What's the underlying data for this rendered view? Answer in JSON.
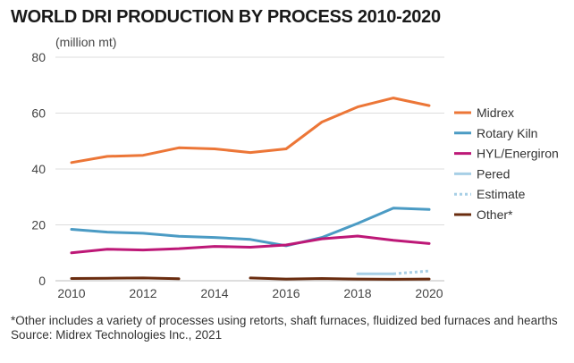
{
  "chart_data": {
    "type": "line",
    "title": "WORLD DRI PRODUCTION BY PROCESS 2010-2020",
    "unit_label": "(million mt)",
    "x_ticks": [
      "2010",
      "2012",
      "2014",
      "2016",
      "2018",
      "2020"
    ],
    "y_ticks": [
      "0",
      "20",
      "40",
      "60",
      "80"
    ],
    "xlim": [
      2010,
      2020
    ],
    "ylim": [
      0,
      80
    ],
    "grid": true,
    "legend_position": "right",
    "series": [
      {
        "name": "Midrex",
        "color": "#ec7637",
        "points": [
          [
            2010,
            42.3
          ],
          [
            2011,
            44.5
          ],
          [
            2012,
            44.9
          ],
          [
            2013,
            47.6
          ],
          [
            2014,
            47.2
          ],
          [
            2015,
            45.9
          ],
          [
            2016,
            47.2
          ],
          [
            2017,
            56.8
          ],
          [
            2018,
            62.2
          ],
          [
            2019,
            65.4
          ],
          [
            2020,
            62.7
          ]
        ]
      },
      {
        "name": "Rotary Kiln",
        "color": "#4b9bc4",
        "points": [
          [
            2010,
            18.4
          ],
          [
            2011,
            17.4
          ],
          [
            2012,
            17.0
          ],
          [
            2013,
            15.9
          ],
          [
            2014,
            15.5
          ],
          [
            2015,
            14.8
          ],
          [
            2016,
            12.5
          ],
          [
            2017,
            15.5
          ],
          [
            2018,
            20.5
          ],
          [
            2019,
            26.0
          ],
          [
            2020,
            25.5
          ]
        ]
      },
      {
        "name": "HYL/Energiron",
        "color": "#bd1877",
        "points": [
          [
            2010,
            10.0
          ],
          [
            2011,
            11.3
          ],
          [
            2012,
            11.0
          ],
          [
            2013,
            11.5
          ],
          [
            2014,
            12.3
          ],
          [
            2015,
            12.0
          ],
          [
            2016,
            12.8
          ],
          [
            2017,
            15.0
          ],
          [
            2018,
            16.0
          ],
          [
            2019,
            14.5
          ],
          [
            2020,
            13.3
          ]
        ]
      },
      {
        "name": "Pered",
        "color": "#a7cfe6",
        "points": [
          [
            2018,
            2.5
          ],
          [
            2019,
            2.5
          ]
        ]
      },
      {
        "name": "Estimate",
        "color": "#a7cfe6",
        "dashed": true,
        "points": [
          [
            2019,
            2.5
          ],
          [
            2020,
            3.5
          ]
        ]
      },
      {
        "name": "Other*",
        "color": "#6a2c0f",
        "segments": [
          [
            [
              2010,
              0.8
            ],
            [
              2011,
              0.9
            ],
            [
              2012,
              1.0
            ],
            [
              2013,
              0.7
            ]
          ],
          [
            [
              2015,
              1.0
            ],
            [
              2016,
              0.6
            ],
            [
              2017,
              0.8
            ],
            [
              2018,
              0.6
            ],
            [
              2019,
              0.5
            ],
            [
              2020,
              0.6
            ]
          ]
        ]
      }
    ]
  },
  "footnote": "*Other includes a variety of processes using retorts, shaft furnaces, fluidized bed furnaces and hearths",
  "source": "Source: Midrex Technologies Inc., 2021"
}
